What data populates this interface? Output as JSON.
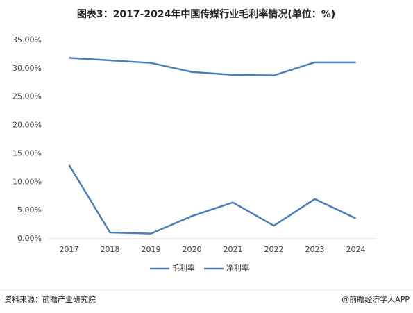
{
  "chart_data": {
    "type": "line",
    "title": "图表3：2017-2024年中国传媒行业毛利率情况(单位：%)",
    "categories": [
      "2017",
      "2018",
      "2019",
      "2020",
      "2021",
      "2022",
      "2023",
      "2024"
    ],
    "series": [
      {
        "name": "毛利率",
        "color": "#4a7ebb",
        "values": [
          31.9,
          31.45,
          31.0,
          29.4,
          28.9,
          28.8,
          31.1,
          31.1
        ]
      },
      {
        "name": "净利率",
        "color": "#4a7ebb",
        "values": [
          13.0,
          1.1,
          0.9,
          4.0,
          6.4,
          2.3,
          7.0,
          3.6
        ]
      }
    ],
    "ylim": [
      0,
      35
    ],
    "yticks": [
      {
        "value": 0,
        "label": "0.00%"
      },
      {
        "value": 5,
        "label": "5.00%"
      },
      {
        "value": 10,
        "label": "10.00%"
      },
      {
        "value": 15,
        "label": "15.00%"
      },
      {
        "value": 20,
        "label": "20.00%"
      },
      {
        "value": 25,
        "label": "25.00%"
      },
      {
        "value": 30,
        "label": "30.00%"
      },
      {
        "value": 35,
        "label": "35.00%"
      }
    ],
    "grid": false,
    "legend": "bottom"
  },
  "footer": {
    "source": "资料来源：前瞻产业研究院",
    "credit": "@前瞻经济学人APP"
  }
}
